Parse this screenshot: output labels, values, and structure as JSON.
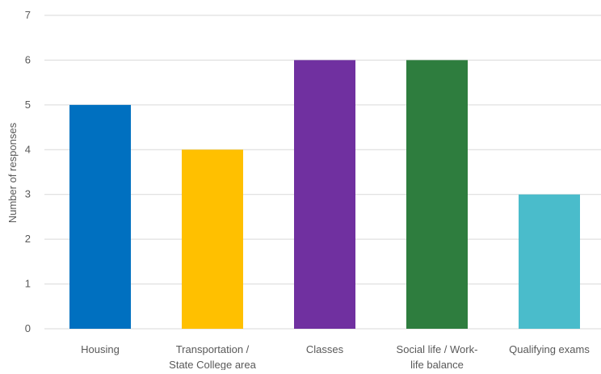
{
  "chart_data": {
    "type": "bar",
    "title": "",
    "xlabel": "",
    "ylabel": "Number of responses",
    "ylim": [
      0,
      7
    ],
    "yticks": [
      0,
      1,
      2,
      3,
      4,
      5,
      6,
      7
    ],
    "grid": true,
    "legend": "none",
    "categories": [
      [
        "Housing"
      ],
      [
        "Transportation /",
        "State College area"
      ],
      [
        "Classes"
      ],
      [
        "Social life / Work-",
        "life balance"
      ],
      [
        "Qualifying exams"
      ]
    ],
    "values": [
      5,
      4,
      6,
      6,
      3
    ],
    "colors": [
      "#0070c0",
      "#ffc000",
      "#7030a0",
      "#2e7d3e",
      "#4abccb"
    ]
  }
}
